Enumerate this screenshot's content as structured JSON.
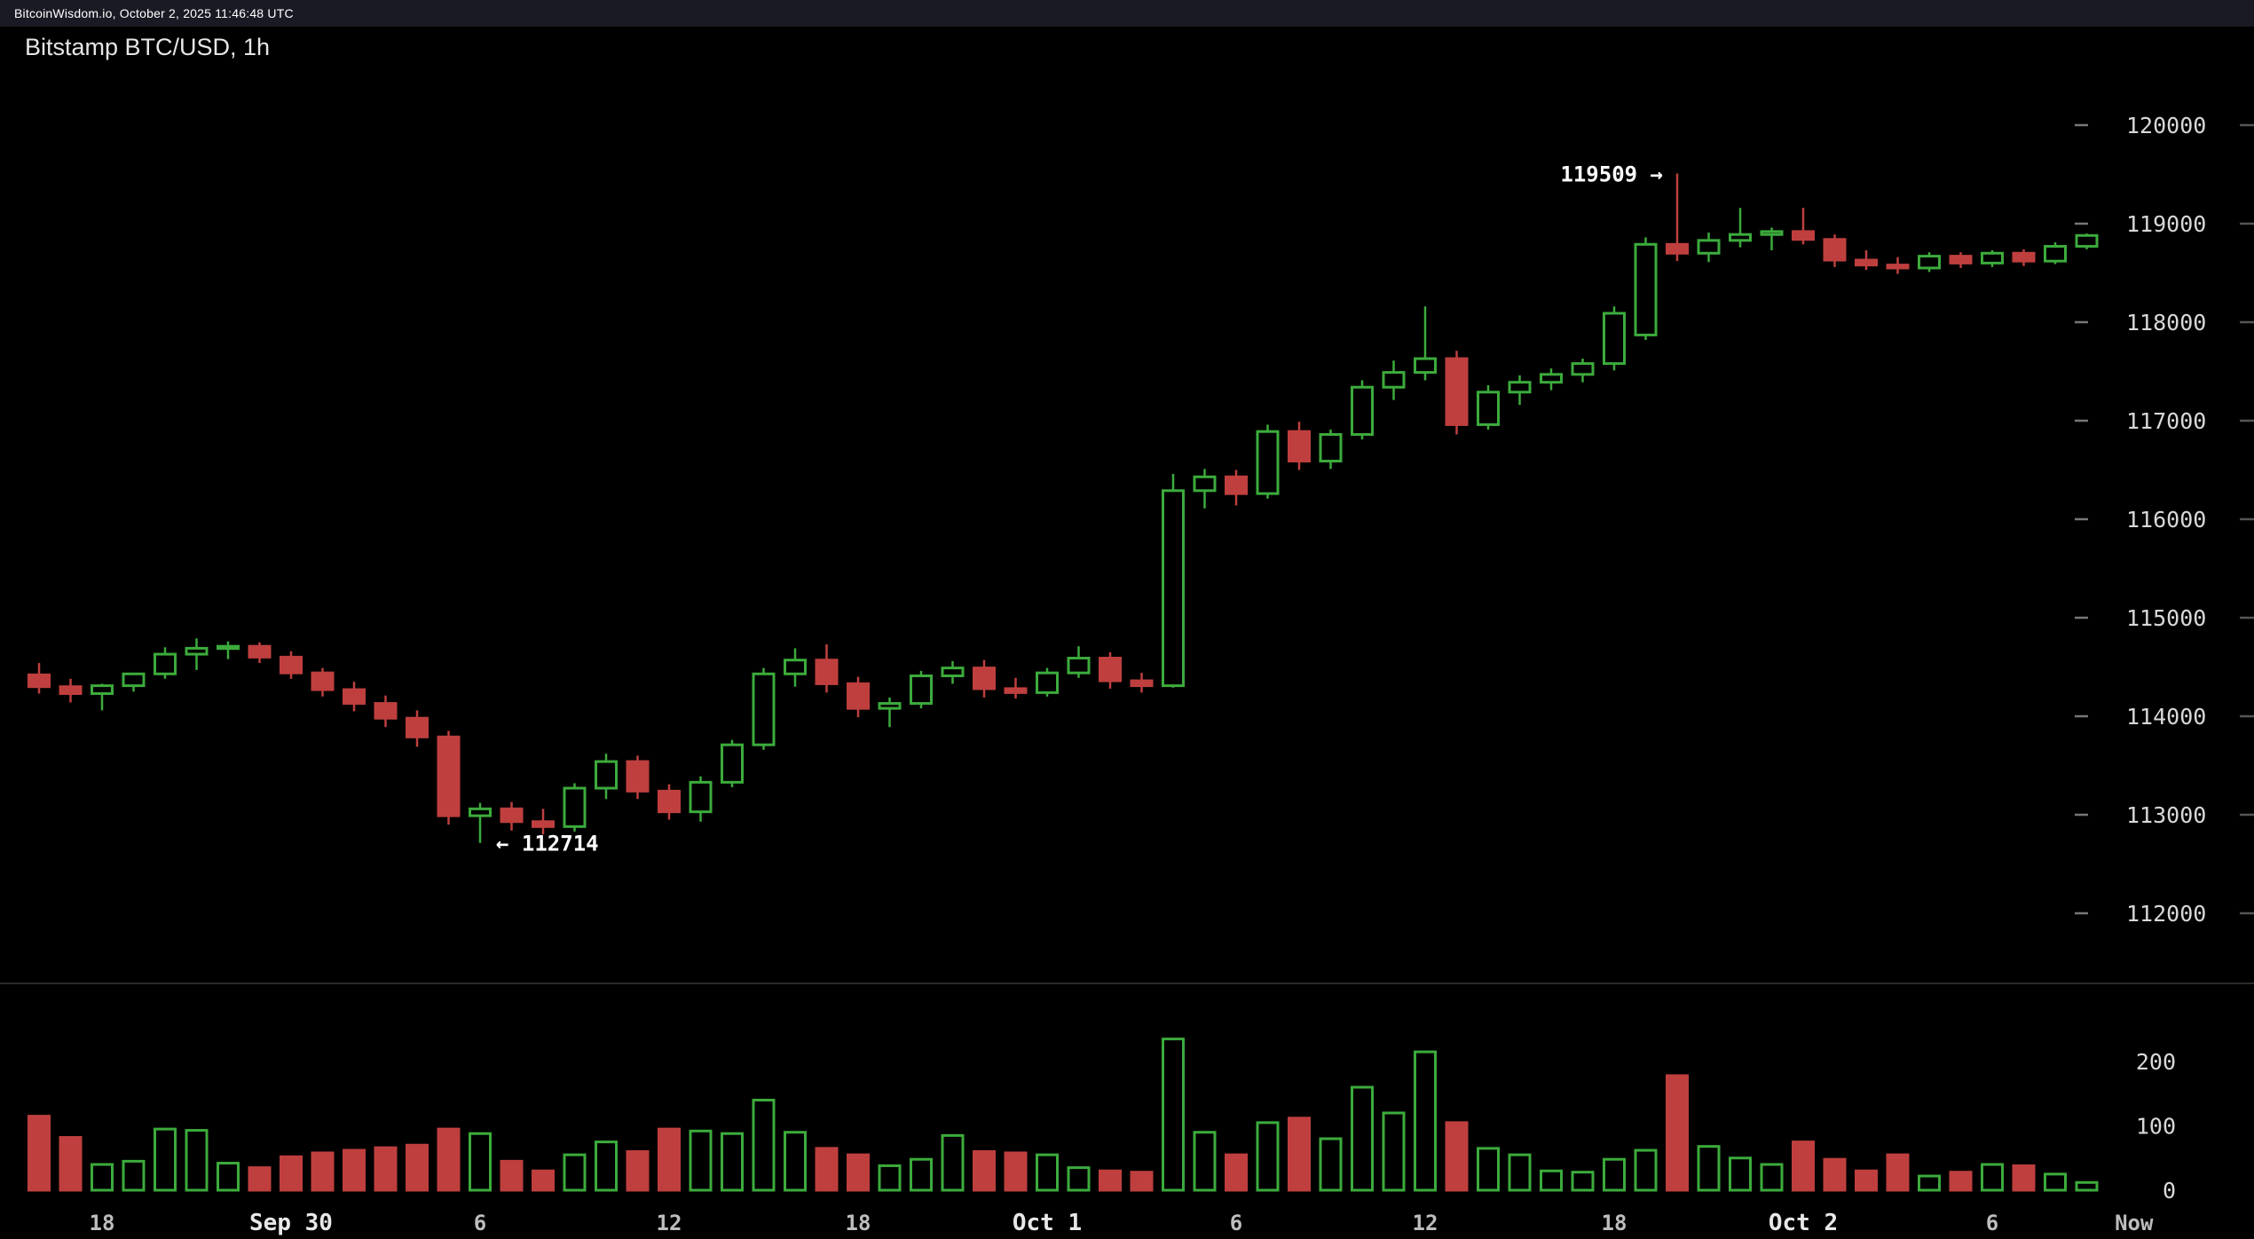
{
  "header": {
    "text": "BitcoinWisdom.io, October 2, 2025 11:46:48 UTC"
  },
  "chart": {
    "title": "Bitstamp BTC/USD, 1h"
  },
  "colors": {
    "up": "#3cab3c",
    "down": "#bf3f3f",
    "background": "#000000",
    "header_bg": "#1a1a24",
    "axis_text": "#d8d8d8",
    "hour_text": "#bdbdbd",
    "month_text": "#e8e8e8",
    "annotation": "#ffffff",
    "divider": "#2a2a2a",
    "tick": "#777777",
    "edge_tick": "#555555"
  },
  "chart_data": {
    "type": "candlestick_with_volume",
    "exchange": "Bitstamp",
    "pair": "BTC/USD",
    "interval": "1h",
    "title": "Bitstamp BTC/USD, 1h",
    "price_axis": {
      "min": 112000,
      "max": 120000,
      "ticks": [
        112000,
        113000,
        114000,
        115000,
        116000,
        117000,
        118000,
        119000,
        120000
      ]
    },
    "volume_axis": {
      "min": 0,
      "max": 260,
      "ticks": [
        0,
        100,
        200
      ]
    },
    "time_axis": [
      {
        "label": "18",
        "index": 2,
        "bold": false
      },
      {
        "label": "Sep 30",
        "index": 8,
        "bold": true
      },
      {
        "label": "6",
        "index": 14,
        "bold": false
      },
      {
        "label": "12",
        "index": 20,
        "bold": false
      },
      {
        "label": "18",
        "index": 26,
        "bold": false
      },
      {
        "label": "Oct 1",
        "index": 32,
        "bold": true
      },
      {
        "label": "6",
        "index": 38,
        "bold": false
      },
      {
        "label": "12",
        "index": 44,
        "bold": false
      },
      {
        "label": "18",
        "index": 50,
        "bold": false
      },
      {
        "label": "Oct 2",
        "index": 56,
        "bold": true
      },
      {
        "label": "6",
        "index": 62,
        "bold": false
      },
      {
        "label": "Now",
        "index": 66.5,
        "bold": false
      }
    ],
    "annotations": {
      "low": {
        "text": "← 112714",
        "price": 112714,
        "candle_index": 14
      },
      "high": {
        "text": "119509 →",
        "price": 119509,
        "candle_index": 52
      }
    },
    "columns": [
      "time",
      "open",
      "high",
      "low",
      "close",
      "volume"
    ],
    "candles": [
      [
        "09-29 16:00",
        114420,
        114540,
        114230,
        114300,
        115
      ],
      [
        "09-29 17:00",
        114300,
        114380,
        114140,
        114230,
        82
      ],
      [
        "09-29 18:00",
        114230,
        114330,
        114060,
        114310,
        40
      ],
      [
        "09-29 19:00",
        114310,
        114440,
        114250,
        114430,
        45
      ],
      [
        "09-29 20:00",
        114430,
        114700,
        114380,
        114630,
        95
      ],
      [
        "09-29 21:00",
        114630,
        114790,
        114470,
        114690,
        93
      ],
      [
        "09-29 22:00",
        114690,
        114760,
        114580,
        114710,
        42
      ],
      [
        "09-29 23:00",
        114710,
        114750,
        114540,
        114600,
        35
      ],
      [
        "09-30 00:00",
        114600,
        114660,
        114380,
        114440,
        52
      ],
      [
        "09-30 01:00",
        114440,
        114490,
        114200,
        114270,
        58
      ],
      [
        "09-30 02:00",
        114270,
        114350,
        114050,
        114130,
        62
      ],
      [
        "09-30 03:00",
        114130,
        114210,
        113890,
        113980,
        66
      ],
      [
        "09-30 04:00",
        113980,
        114060,
        113690,
        113790,
        70
      ],
      [
        "09-30 05:00",
        113790,
        113850,
        112900,
        112990,
        95
      ],
      [
        "09-30 06:00",
        112990,
        113120,
        112714,
        113060,
        88
      ],
      [
        "09-30 07:00",
        113060,
        113130,
        112840,
        112930,
        45
      ],
      [
        "09-30 08:00",
        112930,
        113060,
        112800,
        112880,
        30
      ],
      [
        "09-30 09:00",
        112880,
        113320,
        112830,
        113270,
        55
      ],
      [
        "09-30 10:00",
        113270,
        113620,
        113160,
        113540,
        75
      ],
      [
        "09-30 11:00",
        113540,
        113600,
        113160,
        113240,
        60
      ],
      [
        "09-30 12:00",
        113240,
        113310,
        112950,
        113030,
        95
      ],
      [
        "09-30 13:00",
        113030,
        113390,
        112930,
        113330,
        92
      ],
      [
        "09-30 14:00",
        113330,
        113760,
        113280,
        113710,
        88
      ],
      [
        "09-30 15:00",
        113710,
        114490,
        113660,
        114430,
        140
      ],
      [
        "09-30 16:00",
        114430,
        114690,
        114300,
        114570,
        90
      ],
      [
        "09-30 17:00",
        114570,
        114730,
        114240,
        114330,
        65
      ],
      [
        "09-30 18:00",
        114330,
        114400,
        113990,
        114080,
        55
      ],
      [
        "09-30 19:00",
        114080,
        114190,
        113890,
        114130,
        38
      ],
      [
        "09-30 20:00",
        114130,
        114460,
        114080,
        114410,
        48
      ],
      [
        "09-30 21:00",
        114410,
        114560,
        114330,
        114490,
        85
      ],
      [
        "09-30 22:00",
        114490,
        114570,
        114190,
        114280,
        60
      ],
      [
        "09-30 23:00",
        114280,
        114390,
        114180,
        114240,
        58
      ],
      [
        "10-01 00:00",
        114240,
        114490,
        114200,
        114440,
        55
      ],
      [
        "10-01 01:00",
        114440,
        114710,
        114390,
        114590,
        35
      ],
      [
        "10-01 02:00",
        114590,
        114650,
        114280,
        114360,
        30
      ],
      [
        "10-01 03:00",
        114360,
        114440,
        114240,
        114310,
        28
      ],
      [
        "10-01 04:00",
        114310,
        116460,
        114290,
        116290,
        235
      ],
      [
        "10-01 05:00",
        116290,
        116510,
        116110,
        116430,
        90
      ],
      [
        "10-01 06:00",
        116430,
        116500,
        116140,
        116260,
        55
      ],
      [
        "10-01 07:00",
        116260,
        116960,
        116210,
        116890,
        105
      ],
      [
        "10-01 08:00",
        116890,
        116990,
        116500,
        116590,
        112
      ],
      [
        "10-01 09:00",
        116590,
        116910,
        116510,
        116860,
        80
      ],
      [
        "10-01 10:00",
        116860,
        117410,
        116810,
        117340,
        160
      ],
      [
        "10-01 11:00",
        117340,
        117610,
        117210,
        117490,
        120
      ],
      [
        "10-01 12:00",
        117490,
        118160,
        117410,
        117630,
        215
      ],
      [
        "10-01 13:00",
        117630,
        117710,
        116860,
        116960,
        105
      ],
      [
        "10-01 14:00",
        116960,
        117360,
        116910,
        117290,
        65
      ],
      [
        "10-01 15:00",
        117290,
        117460,
        117160,
        117390,
        55
      ],
      [
        "10-01 16:00",
        117390,
        117530,
        117310,
        117470,
        30
      ],
      [
        "10-01 17:00",
        117470,
        117630,
        117390,
        117580,
        28
      ],
      [
        "10-01 18:00",
        117580,
        118160,
        117510,
        118090,
        48
      ],
      [
        "10-01 19:00",
        117870,
        118860,
        117820,
        118790,
        62
      ],
      [
        "10-01 20:00",
        118790,
        119509,
        118620,
        118700,
        178
      ],
      [
        "10-01 21:00",
        118700,
        118910,
        118610,
        118830,
        68
      ],
      [
        "10-01 22:00",
        118830,
        119160,
        118760,
        118890,
        50
      ],
      [
        "10-01 23:00",
        118890,
        118960,
        118730,
        118920,
        40
      ],
      [
        "10-02 00:00",
        118920,
        119160,
        118790,
        118840,
        75
      ],
      [
        "10-02 01:00",
        118840,
        118890,
        118560,
        118630,
        48
      ],
      [
        "10-02 02:00",
        118630,
        118730,
        118530,
        118580,
        30
      ],
      [
        "10-02 03:00",
        118580,
        118660,
        118490,
        118550,
        55
      ],
      [
        "10-02 04:00",
        118550,
        118710,
        118510,
        118670,
        22
      ],
      [
        "10-02 05:00",
        118670,
        118710,
        118550,
        118600,
        28
      ],
      [
        "10-02 06:00",
        118600,
        118730,
        118560,
        118700,
        40
      ],
      [
        "10-02 07:00",
        118700,
        118740,
        118570,
        118620,
        38
      ],
      [
        "10-02 08:00",
        118620,
        118810,
        118590,
        118770,
        25
      ],
      [
        "10-02 09:00",
        118770,
        118900,
        118740,
        118880,
        12
      ]
    ]
  }
}
